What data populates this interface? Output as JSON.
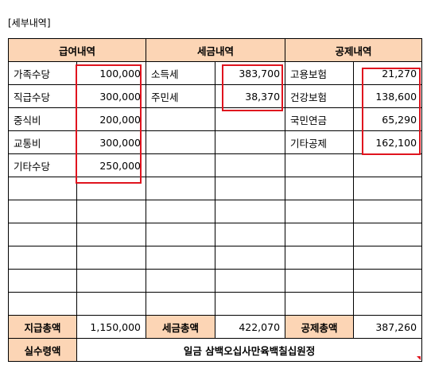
{
  "caption": "[세부내역]",
  "headers": {
    "pay": "급여내역",
    "tax": "세금내역",
    "deduction": "공제내역"
  },
  "rows": [
    {
      "pay_label": "가족수당",
      "pay_value": "100,000",
      "tax_label": "소득세",
      "tax_value": "383,700",
      "ded_label": "고용보험",
      "ded_value": "21,270"
    },
    {
      "pay_label": "직급수당",
      "pay_value": "300,000",
      "tax_label": "주민세",
      "tax_value": "38,370",
      "ded_label": "건강보험",
      "ded_value": "138,600"
    },
    {
      "pay_label": "중식비",
      "pay_value": "200,000",
      "tax_label": "",
      "tax_value": "",
      "ded_label": "국민연금",
      "ded_value": "65,290"
    },
    {
      "pay_label": "교통비",
      "pay_value": "300,000",
      "tax_label": "",
      "tax_value": "",
      "ded_label": "기타공제",
      "ded_value": "162,100"
    },
    {
      "pay_label": "기타수당",
      "pay_value": "250,000",
      "tax_label": "",
      "tax_value": "",
      "ded_label": "",
      "ded_value": ""
    }
  ],
  "totals": {
    "pay_label": "지급총액",
    "pay_value": "1,150,000",
    "tax_label": "세금총액",
    "tax_value": "422,070",
    "ded_label": "공제총액",
    "ded_value": "387,260"
  },
  "net": {
    "label": "실수령액",
    "value": "일금 삼백오십사만육백칠십원정"
  },
  "colors": {
    "header_bg": "#fcd5b5",
    "highlight": "#e0141e"
  }
}
